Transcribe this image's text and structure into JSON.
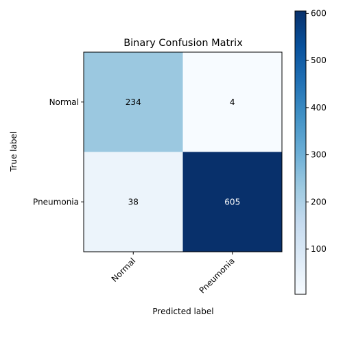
{
  "chart_data": {
    "type": "heatmap",
    "title": "Binary Confusion Matrix",
    "xlabel": "Predicted label",
    "ylabel": "True label",
    "x_categories": [
      "Normal",
      "Pneumonia"
    ],
    "y_categories": [
      "Normal",
      "Pneumonia"
    ],
    "values": [
      [
        234,
        4
      ],
      [
        38,
        605
      ]
    ],
    "colormap": "Blues",
    "colorbar": {
      "range": [
        4,
        605
      ],
      "ticks": [
        100,
        200,
        300,
        400,
        500,
        600
      ]
    },
    "x_tick_rotation_deg": 45
  }
}
